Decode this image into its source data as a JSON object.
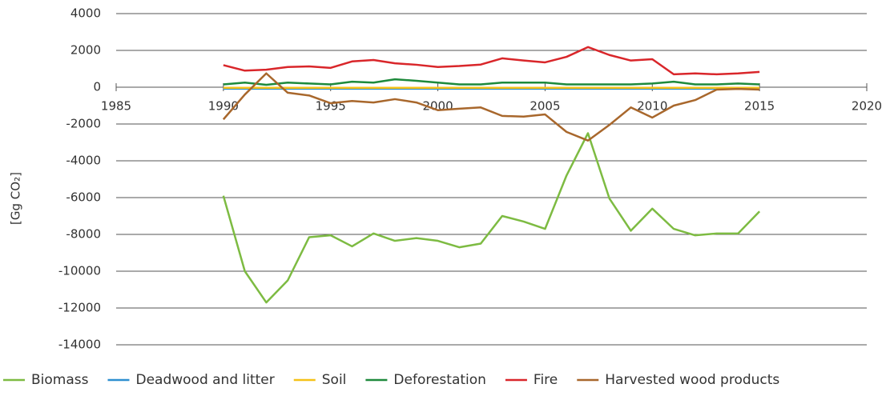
{
  "chart_data": {
    "type": "line",
    "y_label": "[Gg CO₂]",
    "x": [
      1990,
      1991,
      1992,
      1993,
      1994,
      1995,
      1996,
      1997,
      1998,
      1999,
      2000,
      2001,
      2002,
      2003,
      2004,
      2005,
      2006,
      2007,
      2008,
      2009,
      2010,
      2011,
      2012,
      2013,
      2014,
      2015
    ],
    "series": [
      {
        "name": "Biomass",
        "color": "#7dbb42",
        "values": [
          -5900,
          -10000,
          -11700,
          -10500,
          -8150,
          -8050,
          -8650,
          -7950,
          -8350,
          -8200,
          -8350,
          -8700,
          -8500,
          -7000,
          -7300,
          -7700,
          -4800,
          -2500,
          -6050,
          -7800,
          -6600,
          -7700,
          -8050,
          -7950,
          -7950,
          -6750
        ]
      },
      {
        "name": "Deadwood and litter",
        "color": "#2e8fd0",
        "values": [
          -80,
          -80,
          -80,
          -80,
          -80,
          -80,
          -80,
          -80,
          -80,
          -80,
          -80,
          -80,
          -80,
          -80,
          -80,
          -80,
          -80,
          -80,
          -80,
          -80,
          -80,
          -80,
          -80,
          -80,
          -80,
          -80
        ]
      },
      {
        "name": "Soil",
        "color": "#f5c218",
        "values": [
          -30,
          -30,
          -30,
          -30,
          -30,
          -30,
          -30,
          -30,
          -30,
          -30,
          -30,
          -30,
          -30,
          -30,
          -30,
          -30,
          -30,
          -30,
          -30,
          -30,
          -30,
          -30,
          -30,
          -30,
          -30,
          -30
        ]
      },
      {
        "name": "Deforestation",
        "color": "#1e8a3c",
        "values": [
          150,
          250,
          130,
          250,
          200,
          150,
          300,
          250,
          430,
          350,
          250,
          150,
          150,
          250,
          250,
          250,
          150,
          150,
          150,
          150,
          200,
          300,
          150,
          150,
          200,
          150
        ]
      },
      {
        "name": "Fire",
        "color": "#d9262a",
        "values": [
          1200,
          900,
          950,
          1100,
          1130,
          1050,
          1400,
          1480,
          1300,
          1220,
          1100,
          1150,
          1230,
          1570,
          1450,
          1350,
          1650,
          2180,
          1750,
          1450,
          1520,
          700,
          750,
          700,
          750,
          830
        ]
      },
      {
        "name": "Harvested wood products",
        "color": "#a8672c",
        "values": [
          -1750,
          -400,
          750,
          -300,
          -450,
          -870,
          -750,
          -830,
          -650,
          -830,
          -1250,
          -1170,
          -1100,
          -1560,
          -1600,
          -1480,
          -2430,
          -2900,
          -2050,
          -1100,
          -1650,
          -1000,
          -700,
          -130,
          -90,
          -130
        ]
      }
    ],
    "xlim": [
      1985,
      2020
    ],
    "xticks": [
      1985,
      1990,
      1995,
      2000,
      2005,
      2010,
      2015,
      2020
    ],
    "ylim": [
      -14000,
      4000
    ],
    "yticks": [
      4000,
      2000,
      0,
      -2000,
      -4000,
      -6000,
      -8000,
      -10000,
      -12000,
      -14000
    ],
    "grid": true,
    "legend": "bottom"
  }
}
